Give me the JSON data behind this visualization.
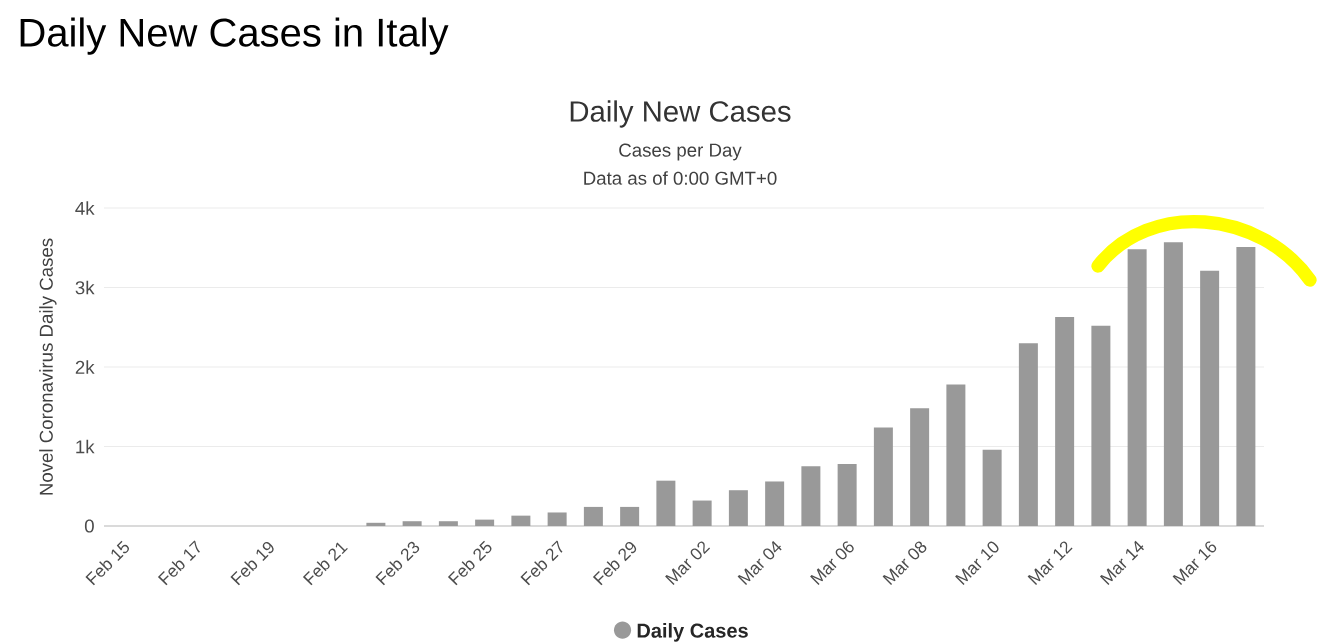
{
  "chart_data": {
    "type": "bar",
    "title": "Daily New Cases in Italy",
    "subtitle": "Daily New Cases",
    "annotations": [
      "Cases per Day",
      "Data as of 0:00 GMT+0"
    ],
    "ylabel": "Novel Coronavirus Daily Cases",
    "categories": [
      "Feb 15",
      null,
      "Feb 17",
      null,
      "Feb 19",
      null,
      "Feb 21",
      null,
      "Feb 23",
      null,
      "Feb 25",
      null,
      "Feb 27",
      null,
      "Feb 29",
      null,
      "Mar 02",
      null,
      "Mar 04",
      null,
      "Mar 06",
      null,
      "Mar 08",
      null,
      "Mar 10",
      null,
      "Mar 12",
      null,
      "Mar 14",
      null,
      "Mar 16",
      null
    ],
    "series": [
      {
        "name": "Daily Cases",
        "color": "#999999",
        "values": [
          0,
          0,
          0,
          0,
          0,
          0,
          0,
          40,
          60,
          60,
          80,
          130,
          170,
          240,
          240,
          570,
          320,
          450,
          560,
          750,
          780,
          1240,
          1480,
          1780,
          960,
          2300,
          2630,
          2520,
          3480,
          3570,
          3210,
          3510
        ]
      }
    ],
    "ylim": [
      0,
      4000
    ],
    "yticks": [
      {
        "value": 0,
        "label": "0"
      },
      {
        "value": 1000,
        "label": "1k"
      },
      {
        "value": 2000,
        "label": "2k"
      },
      {
        "value": 3000,
        "label": "3k"
      },
      {
        "value": 4000,
        "label": "4k"
      }
    ],
    "grid": "y",
    "legend": "bottom"
  }
}
